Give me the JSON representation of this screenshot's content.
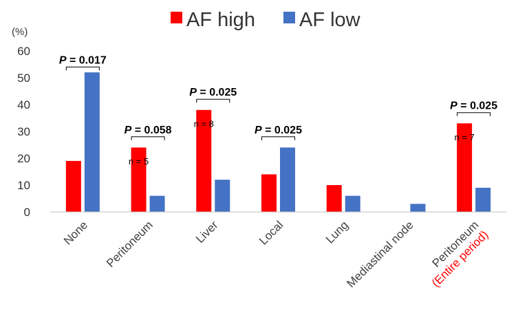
{
  "chart_data": {
    "type": "bar",
    "categories": [
      {
        "label": "None"
      },
      {
        "label": "Peritoneum"
      },
      {
        "label": "Liver"
      },
      {
        "label": "Local"
      },
      {
        "label": "Lung"
      },
      {
        "label": "Mediastinal node"
      },
      {
        "label": "Peritoneum",
        "sublabel": "(Entire period)"
      }
    ],
    "series": [
      {
        "name": "AF high",
        "color": "#FF0000",
        "values": [
          19,
          24,
          38,
          14,
          10,
          0,
          33
        ]
      },
      {
        "name": "AF low",
        "color": "#4472C4",
        "values": [
          52,
          6,
          12,
          24,
          6,
          3,
          9
        ]
      }
    ],
    "ylabel": "(%)",
    "ylim": [
      0,
      60
    ],
    "yticks": [
      0,
      10,
      20,
      30,
      40,
      50,
      60
    ],
    "grid": false,
    "legend_position": "top",
    "sublabel_color": "#FF0000",
    "annotations": [
      {
        "category_index": 0,
        "text": "P = 0.017",
        "level": 54
      },
      {
        "category_index": 1,
        "text": "P = 0.058",
        "level": 28
      },
      {
        "category_index": 2,
        "text": "P = 0.025",
        "level": 42
      },
      {
        "category_index": 3,
        "text": "P = 0.025",
        "level": 28
      },
      {
        "category_index": 6,
        "text": "P = 0.025",
        "level": 37
      }
    ],
    "n_labels": [
      {
        "category_index": 1,
        "text": "n = 5",
        "value": 19
      },
      {
        "category_index": 2,
        "text": "n = 8",
        "value": 33
      },
      {
        "category_index": 6,
        "text": "n = 7",
        "value": 28
      }
    ]
  }
}
